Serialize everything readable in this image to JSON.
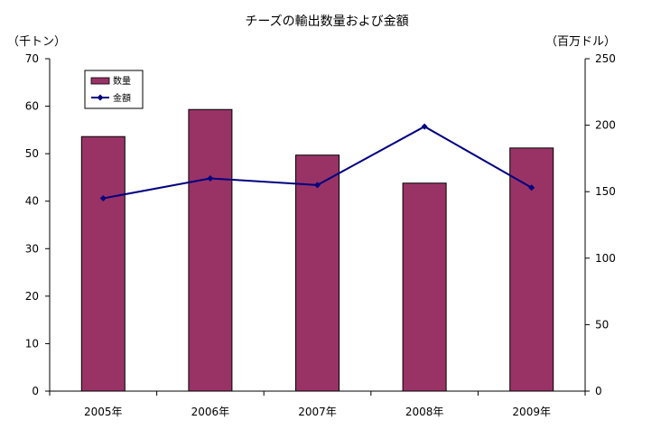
{
  "chart_data": {
    "type": "bar+line",
    "title": "チーズの輸出数量および金額",
    "categories": [
      "2005年",
      "2006年",
      "2007年",
      "2008年",
      "2009年"
    ],
    "left_axis": {
      "unit_label": "（千トン）",
      "range": [
        0,
        70
      ],
      "ticks": [
        "0",
        "10",
        "20",
        "30",
        "40",
        "50",
        "60",
        "70"
      ]
    },
    "right_axis": {
      "unit_label": "（百万ドル）",
      "range": [
        0,
        250
      ],
      "ticks": [
        "0",
        "50",
        "100",
        "150",
        "200",
        "250"
      ]
    },
    "series": [
      {
        "name": "数量",
        "type": "bar",
        "axis": "left",
        "values": [
          53.6,
          59.3,
          49.7,
          43.8,
          51.2
        ]
      },
      {
        "name": "金額",
        "type": "line",
        "axis": "right",
        "values": [
          145,
          160,
          155,
          199,
          153
        ]
      }
    ],
    "grid": false,
    "legend_position": "top-left"
  },
  "colors": {
    "bar_fill": "#993366",
    "line": "#000080",
    "axis": "#000000"
  }
}
